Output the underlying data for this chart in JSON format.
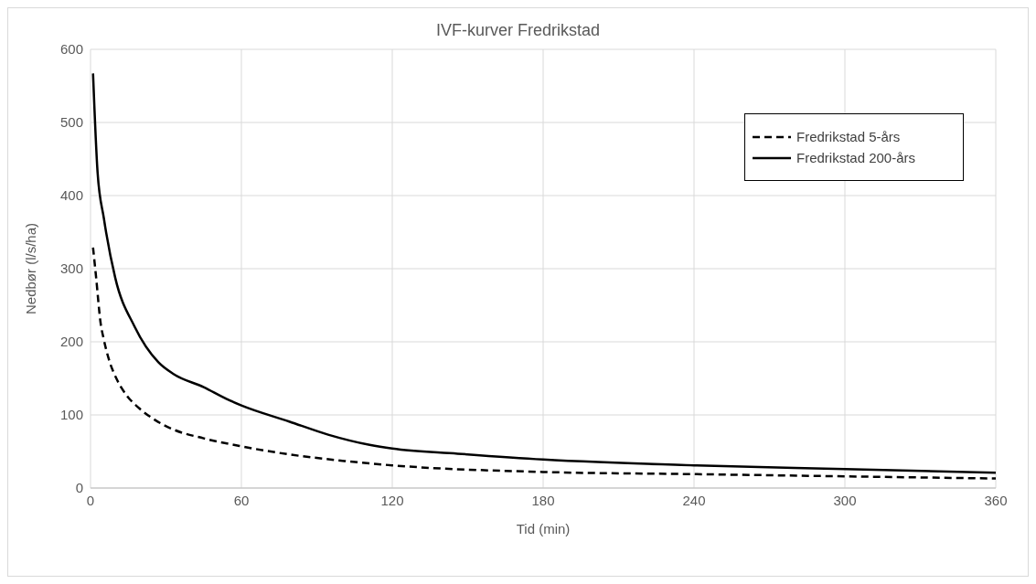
{
  "chart_data": {
    "type": "line",
    "title": "IVF-kurver Fredrikstad",
    "xlabel": "Tid (min)",
    "ylabel": "Nedbør (l/s/ha)",
    "xlim": [
      0,
      360
    ],
    "xticks": [
      0,
      60,
      120,
      180,
      240,
      300,
      360
    ],
    "ylim": [
      0,
      600
    ],
    "yticks": [
      0,
      100,
      200,
      300,
      400,
      500,
      600
    ],
    "grid": true,
    "legend": "top right",
    "marker": "none",
    "series": [
      {
        "name": "Fredrikstad 5-års",
        "color": "#000000",
        "line_style": "dashed",
        "x": [
          1,
          2.2,
          4,
          5.3,
          7.3,
          10.4,
          14.3,
          19.4,
          25.7,
          33,
          45,
          60,
          79,
          101,
          120,
          180,
          240,
          300,
          360
        ],
        "values": [
          329,
          289,
          226,
          203,
          176,
          149,
          127,
          109,
          93,
          80,
          68,
          57,
          46,
          37,
          31,
          22,
          19,
          16,
          13
        ]
      },
      {
        "name": "Fredrikstad 200-års",
        "color": "#000000",
        "line_style": "solid",
        "x": [
          1,
          2.8,
          5.3,
          9.8,
          17.5,
          27,
          33,
          45,
          54,
          60,
          79,
          94.5,
          111,
          120,
          146,
          180,
          240,
          300,
          360
        ],
        "values": [
          567,
          432,
          369,
          288,
          221,
          172,
          156,
          138,
          122,
          113,
          91,
          73,
          59,
          54,
          47,
          39,
          31,
          26,
          21
        ]
      }
    ]
  }
}
